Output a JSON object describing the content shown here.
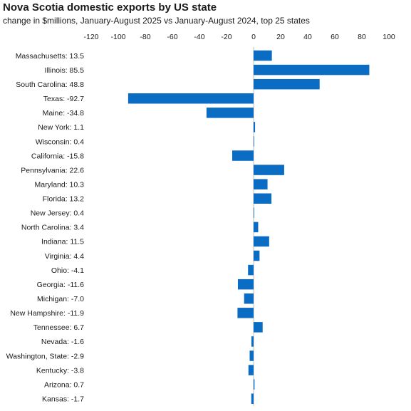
{
  "chart_data": {
    "type": "bar",
    "orientation": "horizontal",
    "title": "Nova Scotia domestic exports by US state",
    "subtitle": "change in $millions, January-August 2025 vs January-August 2024, top 25 states",
    "xlabel": "",
    "ylabel": "",
    "xlim": [
      -120,
      100
    ],
    "xticks": [
      -120,
      -100,
      -80,
      -60,
      -40,
      -20,
      0,
      20,
      40,
      60,
      80,
      100
    ],
    "xtick_labels": [
      "-120",
      "-100",
      "-80",
      "-60",
      "-40",
      "-20",
      "0",
      "20",
      "40",
      "60",
      "80",
      "100"
    ],
    "x_axis_position": "top",
    "grid": false,
    "legend": "none",
    "bar_color": "#0b6cc4",
    "categories": [
      "Massachusetts: 13.5",
      "Illinois: 85.5",
      "South Carolina: 48.8",
      "Texas: -92.7",
      "Maine: -34.8",
      "New York: 1.1",
      "Wisconsin: 0.4",
      "California: -15.8",
      "Pennsylvania: 22.6",
      "Maryland: 10.3",
      "Florida: 13.2",
      "New Jersey: 0.4",
      "North Carolina: 3.4",
      "Indiana: 11.5",
      "Virginia: 4.4",
      "Ohio: -4.1",
      "Georgia: -11.6",
      "Michigan: -7.0",
      "New Hampshire: -11.9",
      "Tennessee: 6.7",
      "Nevada: -1.6",
      "Washington, State: -2.9",
      "Kentucky: -3.8",
      "Arizona: 0.7",
      "Kansas: -1.7"
    ],
    "values": [
      13.5,
      85.5,
      48.8,
      -92.7,
      -34.8,
      1.1,
      0.4,
      -15.8,
      22.6,
      10.3,
      13.2,
      0.4,
      3.4,
      11.5,
      4.4,
      -4.1,
      -11.6,
      -7.0,
      -11.9,
      6.7,
      -1.6,
      -2.9,
      -3.8,
      0.7,
      -1.7
    ]
  }
}
